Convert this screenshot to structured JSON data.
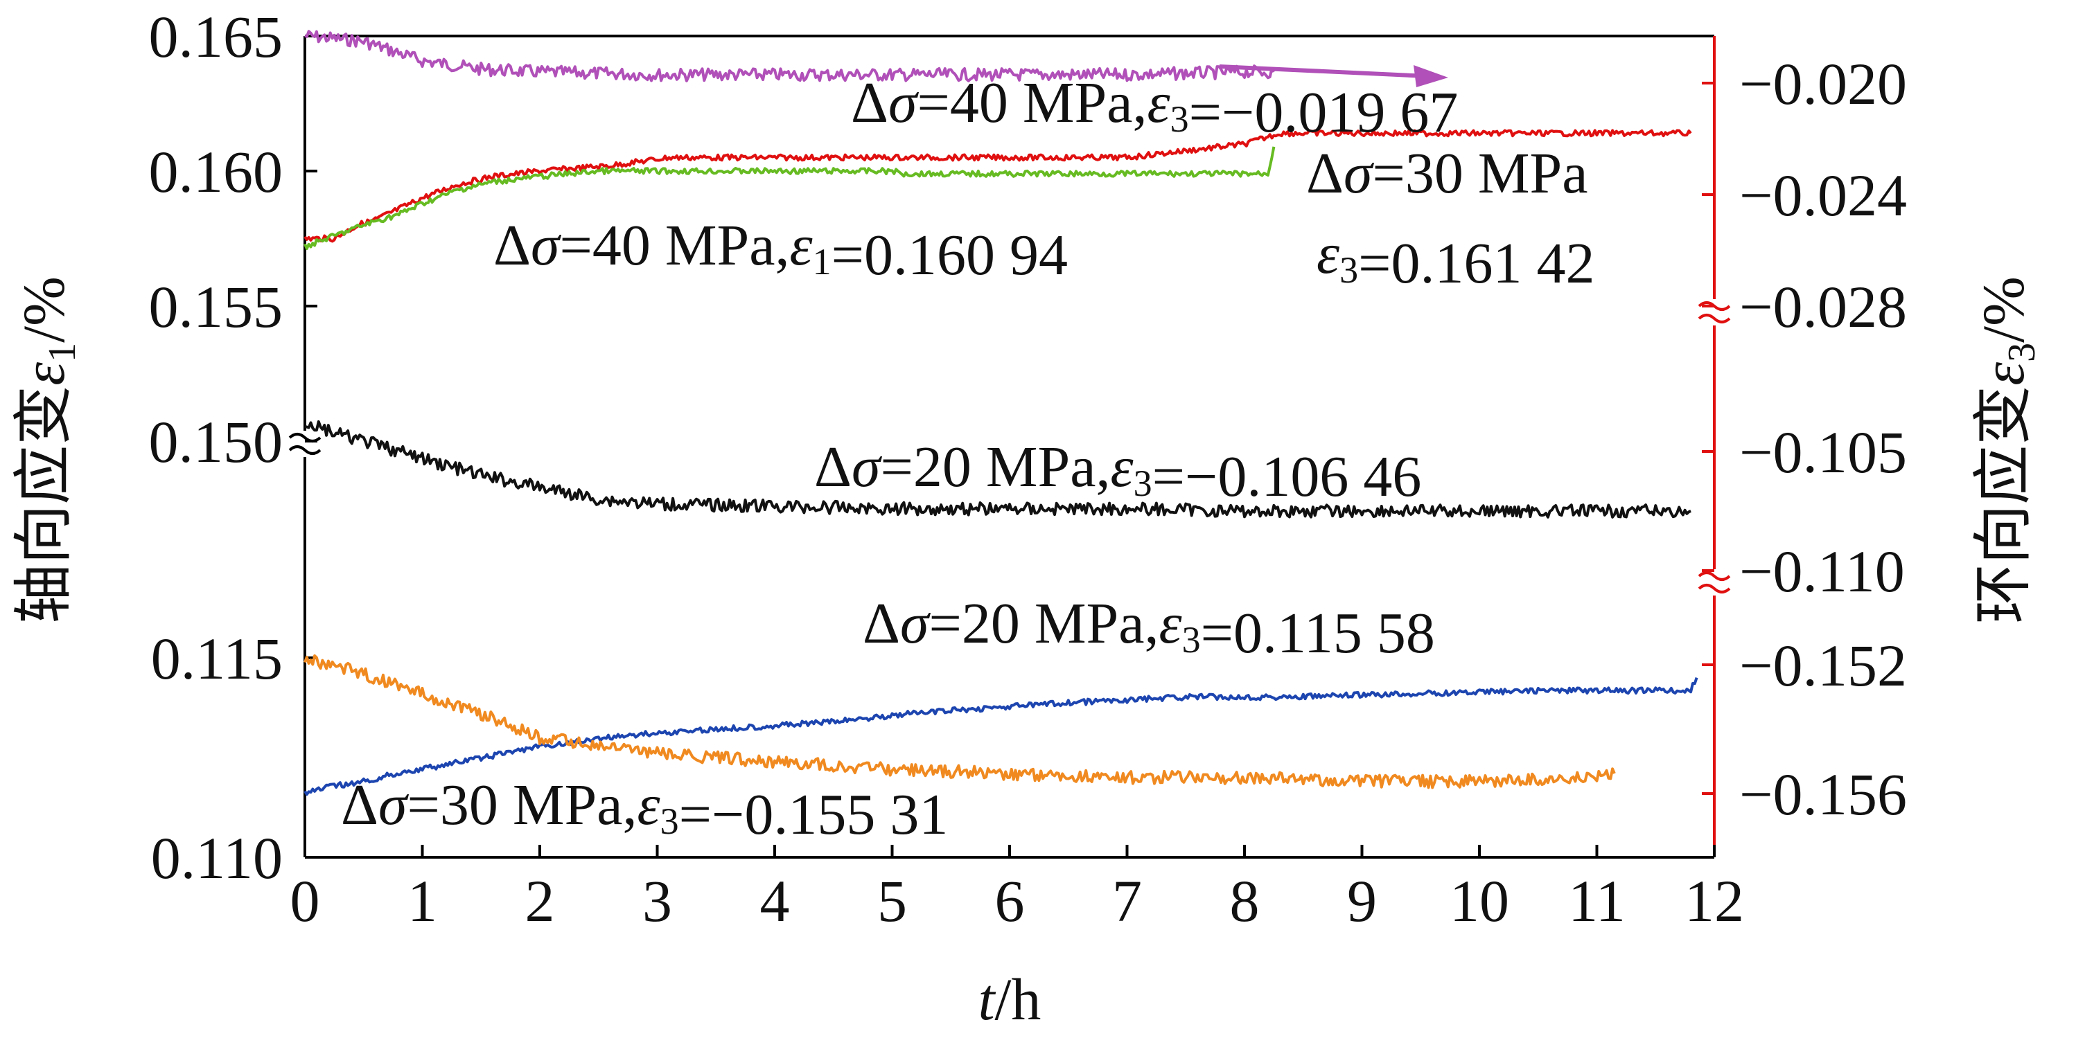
{
  "chart_data": {
    "type": "line",
    "x_axis": {
      "label_italic": "t",
      "label_rest": "/h",
      "range": [
        0,
        12
      ],
      "ticks": [
        "0",
        "1",
        "2",
        "3",
        "4",
        "5",
        "6",
        "7",
        "8",
        "9",
        "10",
        "11",
        "12"
      ]
    },
    "y_left_axis": {
      "label_main": "轴向应变",
      "label_symbol": "ε",
      "label_sub": "1",
      "label_unit": "/%",
      "upper_ticks": [
        "0.165",
        "0.160",
        "0.155",
        "0.150"
      ],
      "lower_ticks": [
        "0.115",
        "0.110"
      ]
    },
    "y_right_axis": {
      "label_main": "环向应变",
      "label_symbol": "ε",
      "label_sub": "3",
      "label_unit": "/%",
      "ticks": [
        "−0.020",
        "−0.024",
        "−0.028",
        "−0.105",
        "−0.110",
        "−0.152",
        "−0.156"
      ]
    },
    "series": [
      {
        "color": "#b050b8",
        "axis": "right",
        "x": [
          0,
          0.5,
          1,
          1.5,
          2,
          3,
          4,
          5,
          6,
          7,
          8,
          8.25
        ],
        "y": [
          -0.0183,
          -0.0185,
          -0.0192,
          -0.0195,
          -0.0196,
          -0.0197,
          -0.0197,
          -0.0197,
          -0.0197,
          -0.0197,
          -0.0196,
          -0.0196
        ]
      },
      {
        "color": "#e01010",
        "axis": "left",
        "x": [
          0,
          0.25,
          0.45,
          0.6,
          0.8,
          1,
          1.3,
          1.6,
          2,
          2.6,
          3.1,
          4,
          5,
          6,
          7,
          7.6,
          8,
          8.3,
          11.8
        ],
        "y": [
          0.1575,
          0.1575,
          0.158,
          0.1582,
          0.1586,
          0.159,
          0.1595,
          0.1598,
          0.16,
          0.1602,
          0.1605,
          0.1605,
          0.1605,
          0.1605,
          0.1605,
          0.1608,
          0.161,
          0.1614,
          0.1614
        ]
      },
      {
        "color": "#66bb22",
        "axis": "left",
        "x": [
          0,
          0.25,
          0.5,
          0.8,
          1,
          1.3,
          1.6,
          2,
          2.5,
          3,
          4,
          5,
          5.1,
          6,
          7,
          8,
          8.2,
          8.25
        ],
        "y": [
          0.1572,
          0.1576,
          0.158,
          0.1584,
          0.1588,
          0.1593,
          0.1596,
          0.1598,
          0.16,
          0.16,
          0.16,
          0.16,
          0.1599,
          0.1599,
          0.1599,
          0.1599,
          0.1599,
          0.1609
        ]
      },
      {
        "color": "#111111",
        "axis": "right",
        "x": [
          0,
          0.3,
          0.6,
          1,
          1.5,
          2,
          2.5,
          3,
          4,
          5,
          6,
          7,
          8,
          9,
          10,
          11,
          11.8
        ],
        "y": [
          -0.1038,
          -0.1043,
          -0.1047,
          -0.1053,
          -0.106,
          -0.1065,
          -0.107,
          -0.1072,
          -0.1073,
          -0.1074,
          -0.1074,
          -0.1074,
          -0.1075,
          -0.1075,
          -0.1075,
          -0.1075,
          -0.1075
        ]
      },
      {
        "color": "#1d45b0",
        "axis": "right",
        "x": [
          0,
          0.2,
          0.55,
          0.75,
          1.2,
          1.5,
          1.9,
          2.3,
          2.7,
          3.5,
          4.4,
          5.2,
          6.4,
          7.5,
          8.4,
          10.5,
          11.8,
          11.85
        ],
        "y": [
          -0.156,
          -0.1558,
          -0.1556,
          -0.1554,
          -0.1551,
          -0.1549,
          -0.1546,
          -0.1544,
          -0.1542,
          -0.154,
          -0.1538,
          -0.1535,
          -0.1532,
          -0.153,
          -0.153,
          -0.1528,
          -0.1528,
          -0.1524
        ]
      },
      {
        "color": "#f08a20",
        "axis": "left",
        "x": [
          0,
          0.5,
          1,
          1.5,
          2,
          3,
          4,
          5,
          6,
          7,
          8,
          9,
          10,
          11,
          11.15
        ],
        "y": [
          0.115,
          0.1146,
          0.1141,
          0.1136,
          0.113,
          0.1126,
          0.1124,
          0.1122,
          0.1121,
          0.112,
          0.112,
          0.1119,
          0.1119,
          0.112,
          0.1121
        ]
      }
    ],
    "annotations": [
      {
        "name": "ann-40-e3",
        "parts": [
          "Δ",
          "σ",
          "=40 MPa",
          ",",
          "ε",
          "3",
          "=−0.019 67"
        ]
      },
      {
        "name": "ann-30-e3-top",
        "parts": [
          "Δ",
          "σ",
          "=30 MPa"
        ]
      },
      {
        "name": "ann-40-e1",
        "parts": [
          "Δ",
          "σ",
          "=40 MPa",
          ",",
          "ε",
          "1",
          "=0.160 94"
        ]
      },
      {
        "name": "ann-30-e3-val",
        "parts": [
          "ε",
          "3",
          "=0.161 42"
        ]
      },
      {
        "name": "ann-20-e3-neg",
        "parts": [
          "Δ",
          "σ",
          "=20 MPa",
          ",",
          "ε",
          "3",
          "=−0.106 46"
        ]
      },
      {
        "name": "ann-20-e3-pos",
        "parts": [
          "Δ",
          "σ",
          "=20 MPa",
          ",",
          "ε",
          "3",
          "=0.115 58"
        ]
      },
      {
        "name": "ann-30-e3-bottom",
        "parts": [
          "Δ",
          "σ",
          "=30 MPa",
          ",",
          "ε",
          "3",
          "=−0.155 31"
        ]
      }
    ],
    "grid": false,
    "legend": "none"
  }
}
